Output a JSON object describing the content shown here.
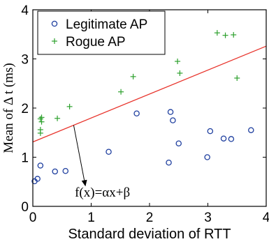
{
  "chart_data": {
    "type": "scatter",
    "xlabel": "Standard deviation of RTT",
    "ylabel": "Mean of Δ t (ms)",
    "xlim": [
      0,
      4
    ],
    "ylim": [
      0,
      4
    ],
    "xticks": [
      0,
      1,
      2,
      3,
      4
    ],
    "yticks": [
      0,
      1,
      2,
      3,
      4
    ],
    "x_tick_labels": [
      "0",
      "1",
      "2",
      "3",
      "4"
    ],
    "y_tick_labels": [
      "0",
      "1",
      "2",
      "3",
      "4"
    ],
    "legend_position": "top-left",
    "series": [
      {
        "name": "Legitimate AP",
        "marker": "circle",
        "color": "#1f3f9f",
        "points": [
          [
            0.03,
            0.51
          ],
          [
            0.08,
            0.56
          ],
          [
            0.13,
            0.83
          ],
          [
            0.38,
            0.71
          ],
          [
            0.56,
            0.72
          ],
          [
            1.3,
            1.11
          ],
          [
            1.78,
            1.89
          ],
          [
            2.33,
            0.89
          ],
          [
            2.36,
            1.92
          ],
          [
            2.4,
            1.75
          ],
          [
            2.5,
            1.28
          ],
          [
            2.99,
            1.0
          ],
          [
            3.04,
            1.53
          ],
          [
            3.27,
            1.38
          ],
          [
            3.4,
            1.37
          ],
          [
            3.74,
            1.55
          ]
        ]
      },
      {
        "name": "Rogue AP",
        "marker": "plus",
        "color": "#2ca02c",
        "points": [
          [
            0.13,
            1.49
          ],
          [
            0.13,
            1.56
          ],
          [
            0.13,
            1.78
          ],
          [
            0.15,
            1.81
          ],
          [
            0.15,
            1.72
          ],
          [
            0.42,
            1.79
          ],
          [
            0.63,
            2.03
          ],
          [
            1.51,
            2.33
          ],
          [
            1.72,
            2.64
          ],
          [
            2.48,
            2.95
          ],
          [
            2.52,
            2.71
          ],
          [
            3.16,
            3.53
          ],
          [
            3.3,
            3.48
          ],
          [
            3.44,
            3.49
          ],
          [
            3.5,
            2.61
          ]
        ]
      }
    ],
    "fit_line": {
      "color": "#e8332b",
      "points": [
        [
          0,
          1.31
        ],
        [
          4,
          3.26
        ]
      ]
    },
    "annotation": {
      "text": "f(x)=αx+β",
      "arrow_from": [
        0.7,
        1.65
      ],
      "arrow_to": [
        0.9,
        0.42
      ],
      "text_at": [
        0.72,
        0.2
      ]
    }
  }
}
